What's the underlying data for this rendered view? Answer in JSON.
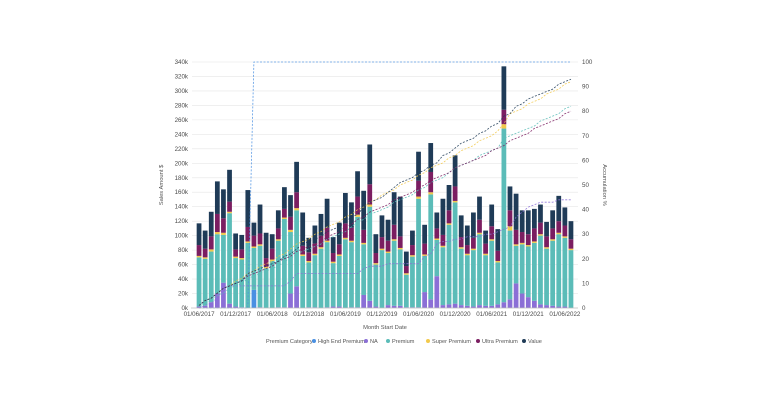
{
  "chart_data": {
    "type": "bar",
    "stacked": true,
    "xlabel": "Month Start Date",
    "ylabel": "Sales Amount $",
    "y2label": "Accumulation %",
    "ylim": [
      0,
      340000
    ],
    "y2lim": [
      0,
      100
    ],
    "y_ticks": [
      "0k",
      "20k",
      "40k",
      "60k",
      "80k",
      "100k",
      "120k",
      "140k",
      "160k",
      "180k",
      "200k",
      "220k",
      "240k",
      "260k",
      "280k",
      "300k",
      "320k",
      "340k"
    ],
    "y2_ticks": [
      "0",
      "10",
      "20",
      "30",
      "40",
      "50",
      "60",
      "70",
      "80",
      "90",
      "100"
    ],
    "x_ticks": [
      {
        "index": 0,
        "label": "01/06/2017"
      },
      {
        "index": 6,
        "label": "01/12/2017"
      },
      {
        "index": 12,
        "label": "01/06/2018"
      },
      {
        "index": 18,
        "label": "01/12/2018"
      },
      {
        "index": 24,
        "label": "01/06/2019"
      },
      {
        "index": 30,
        "label": "01/12/2019"
      },
      {
        "index": 36,
        "label": "01/06/2020"
      },
      {
        "index": 42,
        "label": "01/12/2020"
      },
      {
        "index": 48,
        "label": "01/06/2021"
      },
      {
        "index": 54,
        "label": "01/12/2021"
      },
      {
        "index": 60,
        "label": "01/06/2022"
      }
    ],
    "legend_title": "Premium Category",
    "legend_position": "bottom",
    "series": [
      {
        "name": "High End Premium",
        "color": "#4a90e2",
        "values": [
          0,
          0,
          0,
          0,
          0,
          0,
          0,
          0,
          0,
          25000,
          0,
          0,
          0,
          0,
          0,
          0,
          0,
          0,
          0,
          0,
          0,
          0,
          0,
          0,
          0,
          0,
          0,
          0,
          0,
          0,
          0,
          0,
          0,
          0,
          0,
          0,
          0,
          0,
          0,
          0,
          0,
          0,
          0,
          0,
          0,
          0,
          0,
          0,
          0,
          0,
          0,
          0,
          0,
          0,
          0,
          0,
          0,
          0,
          0,
          0,
          0,
          0
        ]
      },
      {
        "name": "NA",
        "color": "#8b6fd6",
        "values": [
          2000,
          3000,
          8000,
          20000,
          35000,
          6000,
          2000,
          1000,
          0,
          0,
          1000,
          0,
          0,
          1000,
          1000,
          20000,
          30000,
          0,
          1000,
          1000,
          0,
          1000,
          2000,
          2000,
          0,
          1000,
          1000,
          18000,
          10000,
          2000,
          0,
          4000,
          3000,
          3000,
          1000,
          1000,
          1000,
          22000,
          12000,
          44000,
          4000,
          5000,
          6000,
          4000,
          3000,
          2000,
          4000,
          3000,
          3000,
          5000,
          8000,
          12000,
          34000,
          20000,
          15000,
          10000,
          5000,
          4000,
          3000,
          2000,
          2000,
          0
        ]
      },
      {
        "name": "Premium",
        "color": "#5bbcb8",
        "values": [
          68000,
          65000,
          70000,
          82000,
          66000,
          125000,
          67000,
          66000,
          90000,
          58000,
          85000,
          55000,
          65000,
          92000,
          122000,
          85000,
          105000,
          72000,
          62000,
          72000,
          82000,
          90000,
          60000,
          70000,
          95000,
          90000,
          125000,
          70000,
          130000,
          58000,
          80000,
          72000,
          90000,
          78000,
          45000,
          70000,
          150000,
          50000,
          145000,
          50000,
          80000,
          110000,
          140000,
          78000,
          70000,
          78000,
          98000,
          70000,
          90000,
          58000,
          240000,
          95000,
          52000,
          68000,
          70000,
          80000,
          95000,
          78000,
          90000,
          100000,
          95000,
          80000
        ]
      },
      {
        "name": "Super Premium",
        "color": "#f2c94c",
        "values": [
          2000,
          2000,
          3000,
          3000,
          3000,
          2000,
          2000,
          2000,
          2000,
          2000,
          2000,
          2000,
          2000,
          2000,
          2000,
          3000,
          3000,
          2000,
          2000,
          2000,
          2000,
          2000,
          2000,
          2000,
          2000,
          2000,
          3000,
          2000,
          3000,
          2000,
          2000,
          2000,
          2000,
          2000,
          2000,
          2000,
          3000,
          2000,
          3000,
          2000,
          2000,
          2000,
          2000,
          2000,
          2000,
          2000,
          2000,
          2000,
          2000,
          2000,
          6000,
          6000,
          2000,
          2000,
          2000,
          2000,
          2000,
          2000,
          2000,
          2000,
          2000,
          2000
        ]
      },
      {
        "name": "Ultra Premium",
        "color": "#7b1e61",
        "values": [
          15000,
          12000,
          18000,
          25000,
          20000,
          14000,
          10000,
          12000,
          20000,
          15000,
          15000,
          12000,
          15000,
          15000,
          12000,
          18000,
          22000,
          12000,
          12000,
          14000,
          16000,
          18000,
          12000,
          14000,
          20000,
          18000,
          25000,
          18000,
          28000,
          14000,
          16000,
          15000,
          20000,
          16000,
          10000,
          14000,
          22000,
          15000,
          28000,
          14000,
          15000,
          18000,
          20000,
          14000,
          12000,
          15000,
          18000,
          14000,
          18000,
          14000,
          20000,
          22000,
          20000,
          15000,
          15000,
          18000,
          16000,
          15000,
          15000,
          16000,
          15000,
          13000
        ]
      },
      {
        "name": "Value",
        "color": "#1f3b57",
        "values": [
          30000,
          25000,
          34000,
          45000,
          40000,
          44000,
          22000,
          20000,
          51000,
          18000,
          40000,
          35000,
          20000,
          25000,
          30000,
          30000,
          42000,
          46000,
          20000,
          25000,
          30000,
          40000,
          22000,
          30000,
          42000,
          35000,
          35000,
          54000,
          55000,
          26000,
          30000,
          29000,
          45000,
          55000,
          20000,
          20000,
          40000,
          26000,
          40000,
          22000,
          50000,
          35000,
          43000,
          30000,
          27000,
          35000,
          32000,
          18000,
          30000,
          30000,
          60000,
          33000,
          50000,
          30000,
          33000,
          27000,
          25000,
          20000,
          25000,
          35000,
          25000,
          25000
        ]
      }
    ],
    "cumulative_lines": [
      {
        "name": "High End Premium",
        "color": "#4a90e2",
        "y2": [
          0,
          0,
          0,
          0,
          0,
          0,
          0,
          0,
          0,
          100,
          100,
          100,
          100,
          100,
          100,
          100,
          100,
          100,
          100,
          100,
          100,
          100,
          100,
          100,
          100,
          100,
          100,
          100,
          100,
          100,
          100,
          100,
          100,
          100,
          100,
          100,
          100,
          100,
          100,
          100,
          100,
          100,
          100,
          100,
          100,
          100,
          100,
          100,
          100,
          100,
          100,
          100,
          100,
          100,
          100,
          100,
          100,
          100,
          100,
          100,
          100,
          100
        ]
      },
      {
        "name": "NA",
        "color": "#8b6fd6",
        "y2": [
          0,
          1,
          2,
          4,
          8,
          9,
          9,
          9,
          9,
          9,
          9,
          9,
          9,
          9,
          9,
          11,
          14,
          14,
          14,
          14,
          14,
          14,
          14,
          14,
          14,
          14,
          14,
          16,
          17,
          17,
          17,
          18,
          18,
          18,
          18,
          18,
          18,
          21,
          22,
          26,
          27,
          27,
          28,
          28,
          29,
          29,
          29,
          30,
          30,
          31,
          32,
          33,
          37,
          39,
          41,
          42,
          43,
          43,
          43,
          44,
          44,
          44
        ]
      },
      {
        "name": "Premium",
        "color": "#5bbcb8",
        "y2": [
          1,
          2,
          3,
          5,
          6,
          8,
          9,
          10,
          12,
          13,
          14,
          15,
          16,
          17,
          19,
          20,
          22,
          23,
          24,
          25,
          26,
          28,
          29,
          30,
          31,
          33,
          35,
          36,
          38,
          39,
          40,
          41,
          43,
          44,
          45,
          46,
          48,
          49,
          51,
          52,
          53,
          55,
          57,
          58,
          59,
          60,
          62,
          63,
          64,
          65,
          69,
          70,
          71,
          72,
          73,
          74,
          76,
          77,
          78,
          79,
          81,
          82
        ]
      },
      {
        "name": "Super Premium",
        "color": "#f2c94c",
        "y2": [
          1,
          3,
          4,
          6,
          8,
          9,
          11,
          12,
          14,
          15,
          17,
          18,
          19,
          21,
          22,
          24,
          26,
          27,
          28,
          30,
          31,
          33,
          34,
          35,
          37,
          38,
          40,
          41,
          43,
          44,
          46,
          47,
          48,
          50,
          51,
          52,
          54,
          55,
          57,
          58,
          59,
          61,
          62,
          64,
          65,
          66,
          68,
          69,
          70,
          72,
          75,
          79,
          80,
          81,
          83,
          84,
          85,
          87,
          88,
          89,
          91,
          92
        ]
      },
      {
        "name": "Ultra Premium",
        "color": "#7b1e61",
        "y2": [
          1,
          3,
          4,
          6,
          8,
          9,
          10,
          11,
          13,
          14,
          15,
          16,
          17,
          19,
          20,
          21,
          23,
          24,
          25,
          26,
          27,
          29,
          30,
          31,
          33,
          34,
          36,
          37,
          39,
          40,
          41,
          42,
          44,
          45,
          46,
          47,
          49,
          50,
          52,
          53,
          54,
          55,
          57,
          58,
          59,
          60,
          61,
          62,
          64,
          65,
          66,
          68,
          69,
          70,
          71,
          73,
          74,
          75,
          76,
          77,
          79,
          80
        ]
      },
      {
        "name": "Value",
        "color": "#1f3b57",
        "y2": [
          1,
          3,
          4,
          6,
          8,
          9,
          10,
          11,
          14,
          15,
          16,
          17,
          18,
          19,
          21,
          22,
          24,
          26,
          27,
          28,
          29,
          31,
          32,
          33,
          35,
          37,
          38,
          41,
          43,
          44,
          45,
          47,
          49,
          51,
          52,
          53,
          55,
          56,
          58,
          59,
          62,
          63,
          65,
          67,
          68,
          69,
          71,
          72,
          74,
          75,
          78,
          79,
          82,
          83,
          85,
          86,
          87,
          88,
          89,
          91,
          92,
          93
        ]
      }
    ]
  }
}
